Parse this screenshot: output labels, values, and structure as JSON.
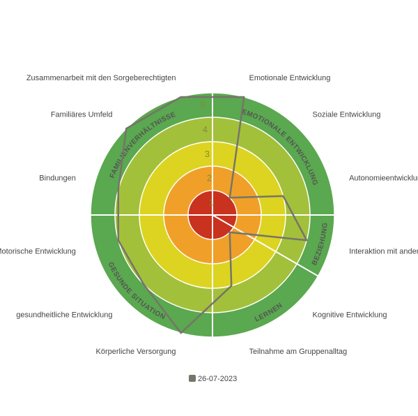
{
  "chart_data": {
    "type": "radar",
    "categories": [
      "Emotionale Entwicklung",
      "Soziale Entwicklung",
      "Autonomieentwicklung",
      "Interaktion mit anderen",
      "Kognitive Entwicklung",
      "Teilnahme am Gruppenalltag",
      "Körperliche Versorgung",
      "gesundheitliche Entwicklung",
      "Motorische Entwicklung",
      "Bindungen",
      "Familiäres Umfeld",
      "Zusammenarbeit mit den Sorgeberechtigten"
    ],
    "groups": [
      {
        "name": "EMOTIONALE ENTWICKLUNG",
        "count": 3
      },
      {
        "name": "BEZIEHUNG",
        "count": 1
      },
      {
        "name": "LERNEN",
        "count": 2
      },
      {
        "name": "GESUNDE SITUATION",
        "count": 3
      },
      {
        "name": "FAMILIENVERHÄLTNISSE",
        "count": 3
      }
    ],
    "rlim": [
      0,
      5
    ],
    "rticks": [
      1,
      2,
      3,
      4,
      5
    ],
    "ring_colors": [
      "#c9321f",
      "#f0a028",
      "#dcd421",
      "#a3c03b",
      "#5aa84f"
    ],
    "series": [
      {
        "name": "26-07-2023",
        "color": "#77746a",
        "values": [
          5,
          1,
          3,
          4,
          1,
          3,
          5,
          4,
          4,
          4,
          5,
          5
        ]
      }
    ]
  }
}
